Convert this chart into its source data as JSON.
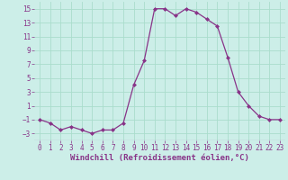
{
  "x": [
    0,
    1,
    2,
    3,
    4,
    5,
    6,
    7,
    8,
    9,
    10,
    11,
    12,
    13,
    14,
    15,
    16,
    17,
    18,
    19,
    20,
    21,
    22,
    23
  ],
  "y": [
    -1,
    -1.5,
    -2.5,
    -2.0,
    -2.5,
    -3.0,
    -2.5,
    -2.5,
    -1.5,
    4.0,
    7.5,
    15.0,
    15.0,
    14.0,
    15.0,
    14.5,
    13.5,
    12.5,
    8.0,
    3.0,
    1.0,
    -0.5,
    -1.0,
    -1.0
  ],
  "line_color": "#883388",
  "marker": "D",
  "markersize": 2.0,
  "linewidth": 0.9,
  "background_color": "#cceee8",
  "grid_color": "#aaddcc",
  "xlabel": "Windchill (Refroidissement éolien,°C)",
  "xlim": [
    -0.5,
    23.5
  ],
  "ylim": [
    -4,
    16
  ],
  "yticks": [
    -3,
    -1,
    1,
    3,
    5,
    7,
    9,
    11,
    13,
    15
  ],
  "xticks": [
    0,
    1,
    2,
    3,
    4,
    5,
    6,
    7,
    8,
    9,
    10,
    11,
    12,
    13,
    14,
    15,
    16,
    17,
    18,
    19,
    20,
    21,
    22,
    23
  ],
  "tick_fontsize": 5.5,
  "label_fontsize": 6.5
}
